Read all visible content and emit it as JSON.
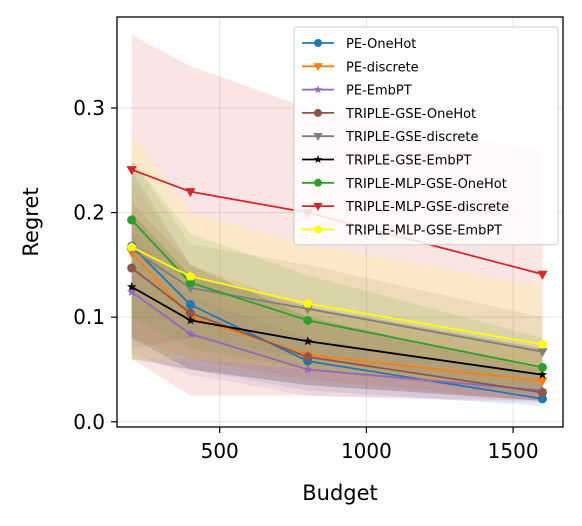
{
  "chart_data": {
    "type": "line",
    "xlabel": "Budget",
    "ylabel": "Regret",
    "xlim": [
      150,
      1670
    ],
    "ylim": [
      -0.005,
      0.387
    ],
    "xticks": [
      500,
      1000,
      1500
    ],
    "yticks": [
      0.0,
      0.1,
      0.2,
      0.3
    ],
    "ytick_labels": [
      "0.0",
      "0.1",
      "0.2",
      "0.3"
    ],
    "grid": true,
    "legend_position": "top-right",
    "x": [
      200,
      400,
      800,
      1600
    ],
    "series": [
      {
        "name": "PE-OneHot",
        "color": "#1f77b4",
        "marker": "circle",
        "values": [
          0.168,
          0.112,
          0.058,
          0.022
        ],
        "lower": [
          0.08,
          0.05,
          0.03,
          0.015
        ],
        "upper": [
          0.24,
          0.15,
          0.1,
          0.05
        ]
      },
      {
        "name": "PE-discrete",
        "color": "#ff7f0e",
        "marker": "triangle-down",
        "values": [
          0.162,
          0.1,
          0.064,
          0.039
        ],
        "lower": [
          0.08,
          0.06,
          0.04,
          0.02
        ],
        "upper": [
          0.23,
          0.15,
          0.11,
          0.07
        ]
      },
      {
        "name": "PE-EmbPT",
        "color": "#9467bd",
        "marker": "star",
        "values": [
          0.124,
          0.084,
          0.05,
          0.03
        ],
        "lower": [
          0.065,
          0.045,
          0.025,
          0.018
        ],
        "upper": [
          0.18,
          0.12,
          0.08,
          0.045
        ]
      },
      {
        "name": "TRIPLE-GSE-OneHot",
        "color": "#8c564b",
        "marker": "circle",
        "values": [
          0.147,
          0.104,
          0.062,
          0.028
        ],
        "lower": [
          0.08,
          0.05,
          0.035,
          0.02
        ],
        "upper": [
          0.21,
          0.15,
          0.1,
          0.05
        ]
      },
      {
        "name": "TRIPLE-GSE-discrete",
        "color": "#7f7f7f",
        "marker": "triangle-down",
        "values": [
          0.165,
          0.128,
          0.108,
          0.067
        ],
        "lower": [
          0.07,
          0.08,
          0.06,
          0.03
        ],
        "upper": [
          0.25,
          0.17,
          0.15,
          0.1
        ]
      },
      {
        "name": "TRIPLE-GSE-EmbPT",
        "color": "#000000",
        "marker": "star",
        "values": [
          0.129,
          0.097,
          0.077,
          0.045
        ],
        "lower": [
          0.06,
          0.05,
          0.035,
          0.02
        ],
        "upper": [
          0.2,
          0.14,
          0.11,
          0.07
        ]
      },
      {
        "name": "TRIPLE-MLP-GSE-OneHot",
        "color": "#2ca02c",
        "marker": "circle",
        "values": [
          0.193,
          0.133,
          0.097,
          0.052
        ],
        "lower": [
          0.1,
          0.07,
          0.05,
          0.025
        ],
        "upper": [
          0.25,
          0.18,
          0.14,
          0.08
        ]
      },
      {
        "name": "TRIPLE-MLP-GSE-discrete",
        "color": "#d62728",
        "marker": "triangle-down",
        "values": [
          0.241,
          0.22,
          0.2,
          0.141
        ],
        "lower": [
          0.06,
          0.025,
          0.025,
          0.02
        ],
        "upper": [
          0.37,
          0.34,
          0.3,
          0.26
        ]
      },
      {
        "name": "TRIPLE-MLP-GSE-EmbPT",
        "color": "#ffff00",
        "marker": "pentagon",
        "values": [
          0.167,
          0.139,
          0.113,
          0.074
        ],
        "lower": [
          0.06,
          0.06,
          0.05,
          0.03
        ],
        "upper": [
          0.275,
          0.2,
          0.17,
          0.13
        ]
      }
    ]
  }
}
